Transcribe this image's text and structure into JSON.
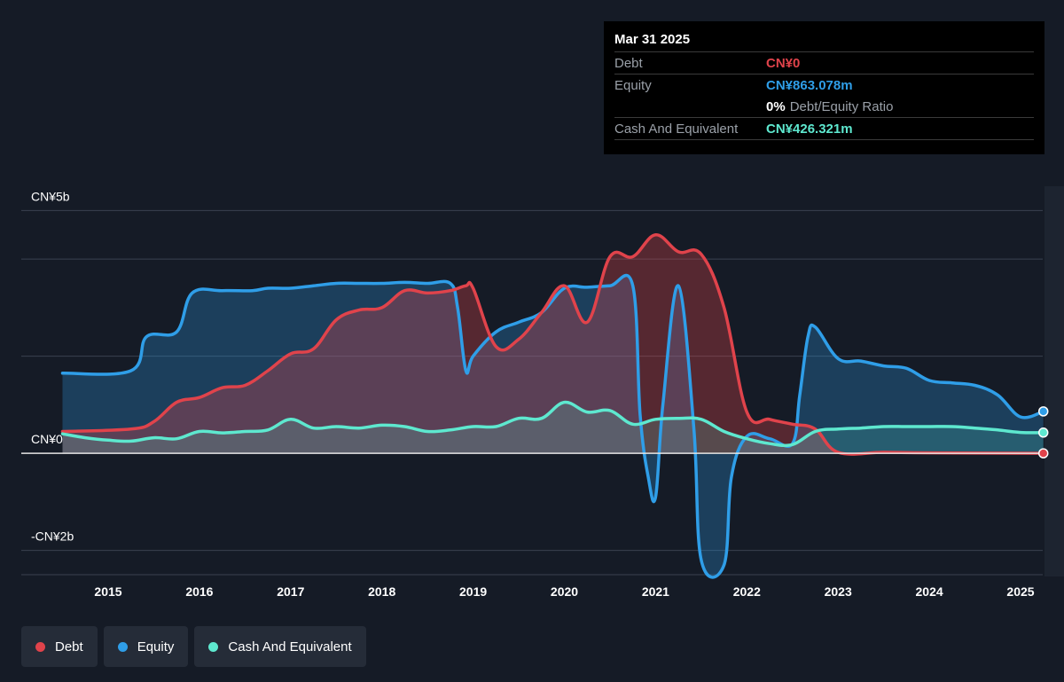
{
  "colors": {
    "debt": "#e0434b",
    "equity": "#2f9ee8",
    "cash": "#5ee8cf"
  },
  "tooltip": {
    "date": "Mar 31 2025",
    "debt_label": "Debt",
    "debt_value": "CN¥0",
    "equity_label": "Equity",
    "equity_value": "CN¥863.078m",
    "ratio_value": "0%",
    "ratio_label": "Debt/Equity Ratio",
    "cash_label": "Cash And Equivalent",
    "cash_value": "CN¥426.321m"
  },
  "legend": {
    "debt": "Debt",
    "equity": "Equity",
    "cash": "Cash And Equivalent"
  },
  "chart_data": {
    "type": "area",
    "ylim": [
      -2.5,
      5.5
    ],
    "xlim": [
      2014.0,
      2025.25
    ],
    "y_tick_labels": [
      {
        "value": 5,
        "label": "CN¥5b"
      },
      {
        "value": 0,
        "label": "CN¥0"
      },
      {
        "value": -2,
        "label": "-CN¥2b"
      }
    ],
    "gridlines": [
      5,
      4,
      2,
      0,
      -2
    ],
    "x_ticks": [
      2015,
      2016,
      2017,
      2018,
      2019,
      2020,
      2021,
      2022,
      2023,
      2024,
      2025
    ],
    "x_tick_labels": [
      "2015",
      "2016",
      "2017",
      "2018",
      "2019",
      "2020",
      "2021",
      "2022",
      "2023",
      "2024",
      "2025"
    ],
    "series": [
      {
        "name": "Equity",
        "key": "equity",
        "x": [
          2014.5,
          2015.25,
          2015.42,
          2015.75,
          2015.92,
          2016.25,
          2016.58,
          2016.75,
          2017.0,
          2017.25,
          2017.5,
          2017.75,
          2018.0,
          2018.25,
          2018.5,
          2018.75,
          2018.83,
          2018.92,
          2019.0,
          2019.25,
          2019.5,
          2019.75,
          2020.0,
          2020.25,
          2020.5,
          2020.75,
          2020.83,
          2020.92,
          2021.0,
          2021.08,
          2021.25,
          2021.42,
          2021.5,
          2021.75,
          2021.83,
          2022.0,
          2022.25,
          2022.5,
          2022.58,
          2022.67,
          2022.75,
          2023.0,
          2023.25,
          2023.5,
          2023.75,
          2024.0,
          2024.25,
          2024.5,
          2024.75,
          2025.0,
          2025.25
        ],
        "values": [
          1.65,
          1.7,
          2.4,
          2.5,
          3.3,
          3.35,
          3.35,
          3.4,
          3.4,
          3.45,
          3.5,
          3.5,
          3.5,
          3.52,
          3.5,
          3.5,
          3.0,
          1.7,
          2.0,
          2.5,
          2.7,
          2.9,
          3.4,
          3.42,
          3.45,
          3.45,
          0.8,
          -0.5,
          -0.9,
          1.0,
          3.45,
          0.5,
          -2.2,
          -2.3,
          -0.5,
          0.35,
          0.3,
          0.2,
          1.2,
          2.4,
          2.6,
          1.95,
          1.9,
          1.8,
          1.75,
          1.5,
          1.45,
          1.4,
          1.2,
          0.75,
          0.863
        ]
      },
      {
        "name": "Debt",
        "key": "debt",
        "x": [
          2014.5,
          2015.25,
          2015.5,
          2015.75,
          2016.0,
          2016.25,
          2016.5,
          2016.75,
          2017.0,
          2017.25,
          2017.5,
          2017.75,
          2018.0,
          2018.25,
          2018.5,
          2018.75,
          2018.92,
          2019.0,
          2019.25,
          2019.5,
          2019.75,
          2020.0,
          2020.25,
          2020.5,
          2020.75,
          2021.0,
          2021.25,
          2021.5,
          2021.75,
          2022.0,
          2022.25,
          2022.5,
          2022.75,
          2023.0,
          2023.5,
          2024.0,
          2025.25
        ],
        "values": [
          0.45,
          0.5,
          0.65,
          1.05,
          1.15,
          1.35,
          1.4,
          1.7,
          2.05,
          2.15,
          2.75,
          2.95,
          3.0,
          3.35,
          3.3,
          3.35,
          3.45,
          3.4,
          2.2,
          2.35,
          2.9,
          3.45,
          2.7,
          4.05,
          4.05,
          4.5,
          4.15,
          4.1,
          3.0,
          0.85,
          0.7,
          0.6,
          0.5,
          0.02,
          0.02,
          0.01,
          0.0
        ]
      },
      {
        "name": "Cash And Equivalent",
        "key": "cash",
        "x": [
          2014.5,
          2014.75,
          2015.0,
          2015.25,
          2015.5,
          2015.75,
          2016.0,
          2016.25,
          2016.5,
          2016.75,
          2017.0,
          2017.25,
          2017.5,
          2017.75,
          2018.0,
          2018.25,
          2018.5,
          2018.75,
          2019.0,
          2019.25,
          2019.5,
          2019.75,
          2020.0,
          2020.25,
          2020.5,
          2020.75,
          2021.0,
          2021.25,
          2021.5,
          2021.75,
          2022.0,
          2022.25,
          2022.5,
          2022.75,
          2023.0,
          2023.25,
          2023.5,
          2023.75,
          2024.0,
          2024.25,
          2024.5,
          2024.75,
          2025.0,
          2025.25
        ],
        "values": [
          0.4,
          0.32,
          0.27,
          0.25,
          0.32,
          0.3,
          0.45,
          0.42,
          0.45,
          0.48,
          0.7,
          0.52,
          0.55,
          0.52,
          0.58,
          0.55,
          0.45,
          0.48,
          0.55,
          0.55,
          0.72,
          0.72,
          1.05,
          0.85,
          0.88,
          0.6,
          0.7,
          0.72,
          0.7,
          0.45,
          0.3,
          0.2,
          0.18,
          0.45,
          0.5,
          0.52,
          0.55,
          0.55,
          0.55,
          0.55,
          0.52,
          0.48,
          0.43,
          0.426
        ]
      }
    ]
  }
}
